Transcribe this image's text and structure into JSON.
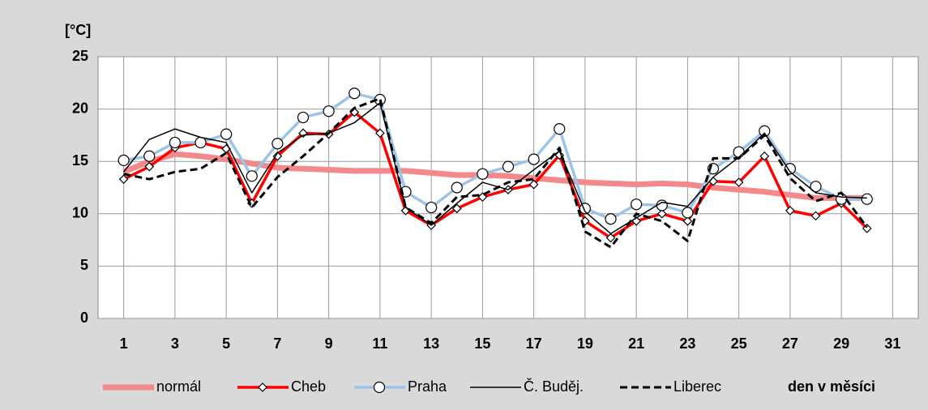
{
  "chart_data": {
    "type": "line",
    "y_label": "[°C]",
    "x_label": "den v měsíci",
    "x": [
      1,
      2,
      3,
      4,
      5,
      6,
      7,
      8,
      9,
      10,
      11,
      12,
      13,
      14,
      15,
      16,
      17,
      18,
      19,
      20,
      21,
      22,
      23,
      24,
      25,
      26,
      27,
      28,
      29,
      30
    ],
    "xlim": [
      0,
      32
    ],
    "xticks": [
      1,
      3,
      5,
      7,
      9,
      11,
      13,
      15,
      17,
      19,
      21,
      23,
      25,
      27,
      29,
      31
    ],
    "ylim": [
      0,
      25
    ],
    "yticks": [
      0,
      5,
      10,
      15,
      20,
      25
    ],
    "grid": true,
    "legend": "bottom",
    "series": [
      {
        "name": "normál",
        "color": "#f4898c",
        "values": [
          14.0,
          15.0,
          15.7,
          15.5,
          15.2,
          14.8,
          14.4,
          14.3,
          14.2,
          14.1,
          14.1,
          14.1,
          13.9,
          13.7,
          13.7,
          13.6,
          13.4,
          13.2,
          13.0,
          12.9,
          12.8,
          12.9,
          12.8,
          12.5,
          12.3,
          12.1,
          11.8,
          11.5,
          11.5,
          11.5
        ]
      },
      {
        "name": "Cheb",
        "color": "#ff0000",
        "marker": "diamond",
        "values": [
          13.3,
          14.5,
          16.3,
          16.8,
          16.2,
          11.0,
          15.5,
          17.7,
          17.6,
          19.7,
          17.7,
          10.3,
          8.9,
          10.5,
          11.6,
          12.3,
          12.8,
          15.6,
          9.3,
          7.7,
          9.3,
          10.0,
          9.3,
          13.1,
          13.0,
          15.5,
          10.3,
          9.8,
          11.0,
          8.6
        ]
      },
      {
        "name": "Praha",
        "color": "#9dc3e6",
        "marker": "circle",
        "values": [
          15.1,
          15.5,
          16.8,
          16.8,
          17.6,
          13.6,
          16.7,
          19.2,
          19.8,
          21.5,
          20.9,
          12.1,
          10.6,
          12.5,
          13.8,
          14.5,
          15.2,
          18.1,
          10.5,
          9.5,
          10.9,
          10.8,
          10.1,
          14.3,
          15.9,
          17.9,
          14.3,
          12.6,
          11.4,
          11.4
        ]
      },
      {
        "name": "Č. Buděj.",
        "color": "#000000",
        "values": [
          14.0,
          17.1,
          18.1,
          17.3,
          16.8,
          12.0,
          15.8,
          17.5,
          17.7,
          18.7,
          20.6,
          10.6,
          8.9,
          11.0,
          13.0,
          12.3,
          14.2,
          16.0,
          10.2,
          8.1,
          9.6,
          11.1,
          10.7,
          13.5,
          15.4,
          17.7,
          14.0,
          12.0,
          11.6,
          11.5
        ]
      },
      {
        "name": "Liberec",
        "color": "#000000",
        "dashed": true,
        "values": [
          13.8,
          13.3,
          14.0,
          14.3,
          15.8,
          10.6,
          13.5,
          15.5,
          17.7,
          20.1,
          21.0,
          10.6,
          9.1,
          11.6,
          11.8,
          13.0,
          13.3,
          16.3,
          8.3,
          6.8,
          10.0,
          9.3,
          7.4,
          15.3,
          15.3,
          17.5,
          13.4,
          11.2,
          12.0,
          8.7
        ]
      }
    ]
  }
}
